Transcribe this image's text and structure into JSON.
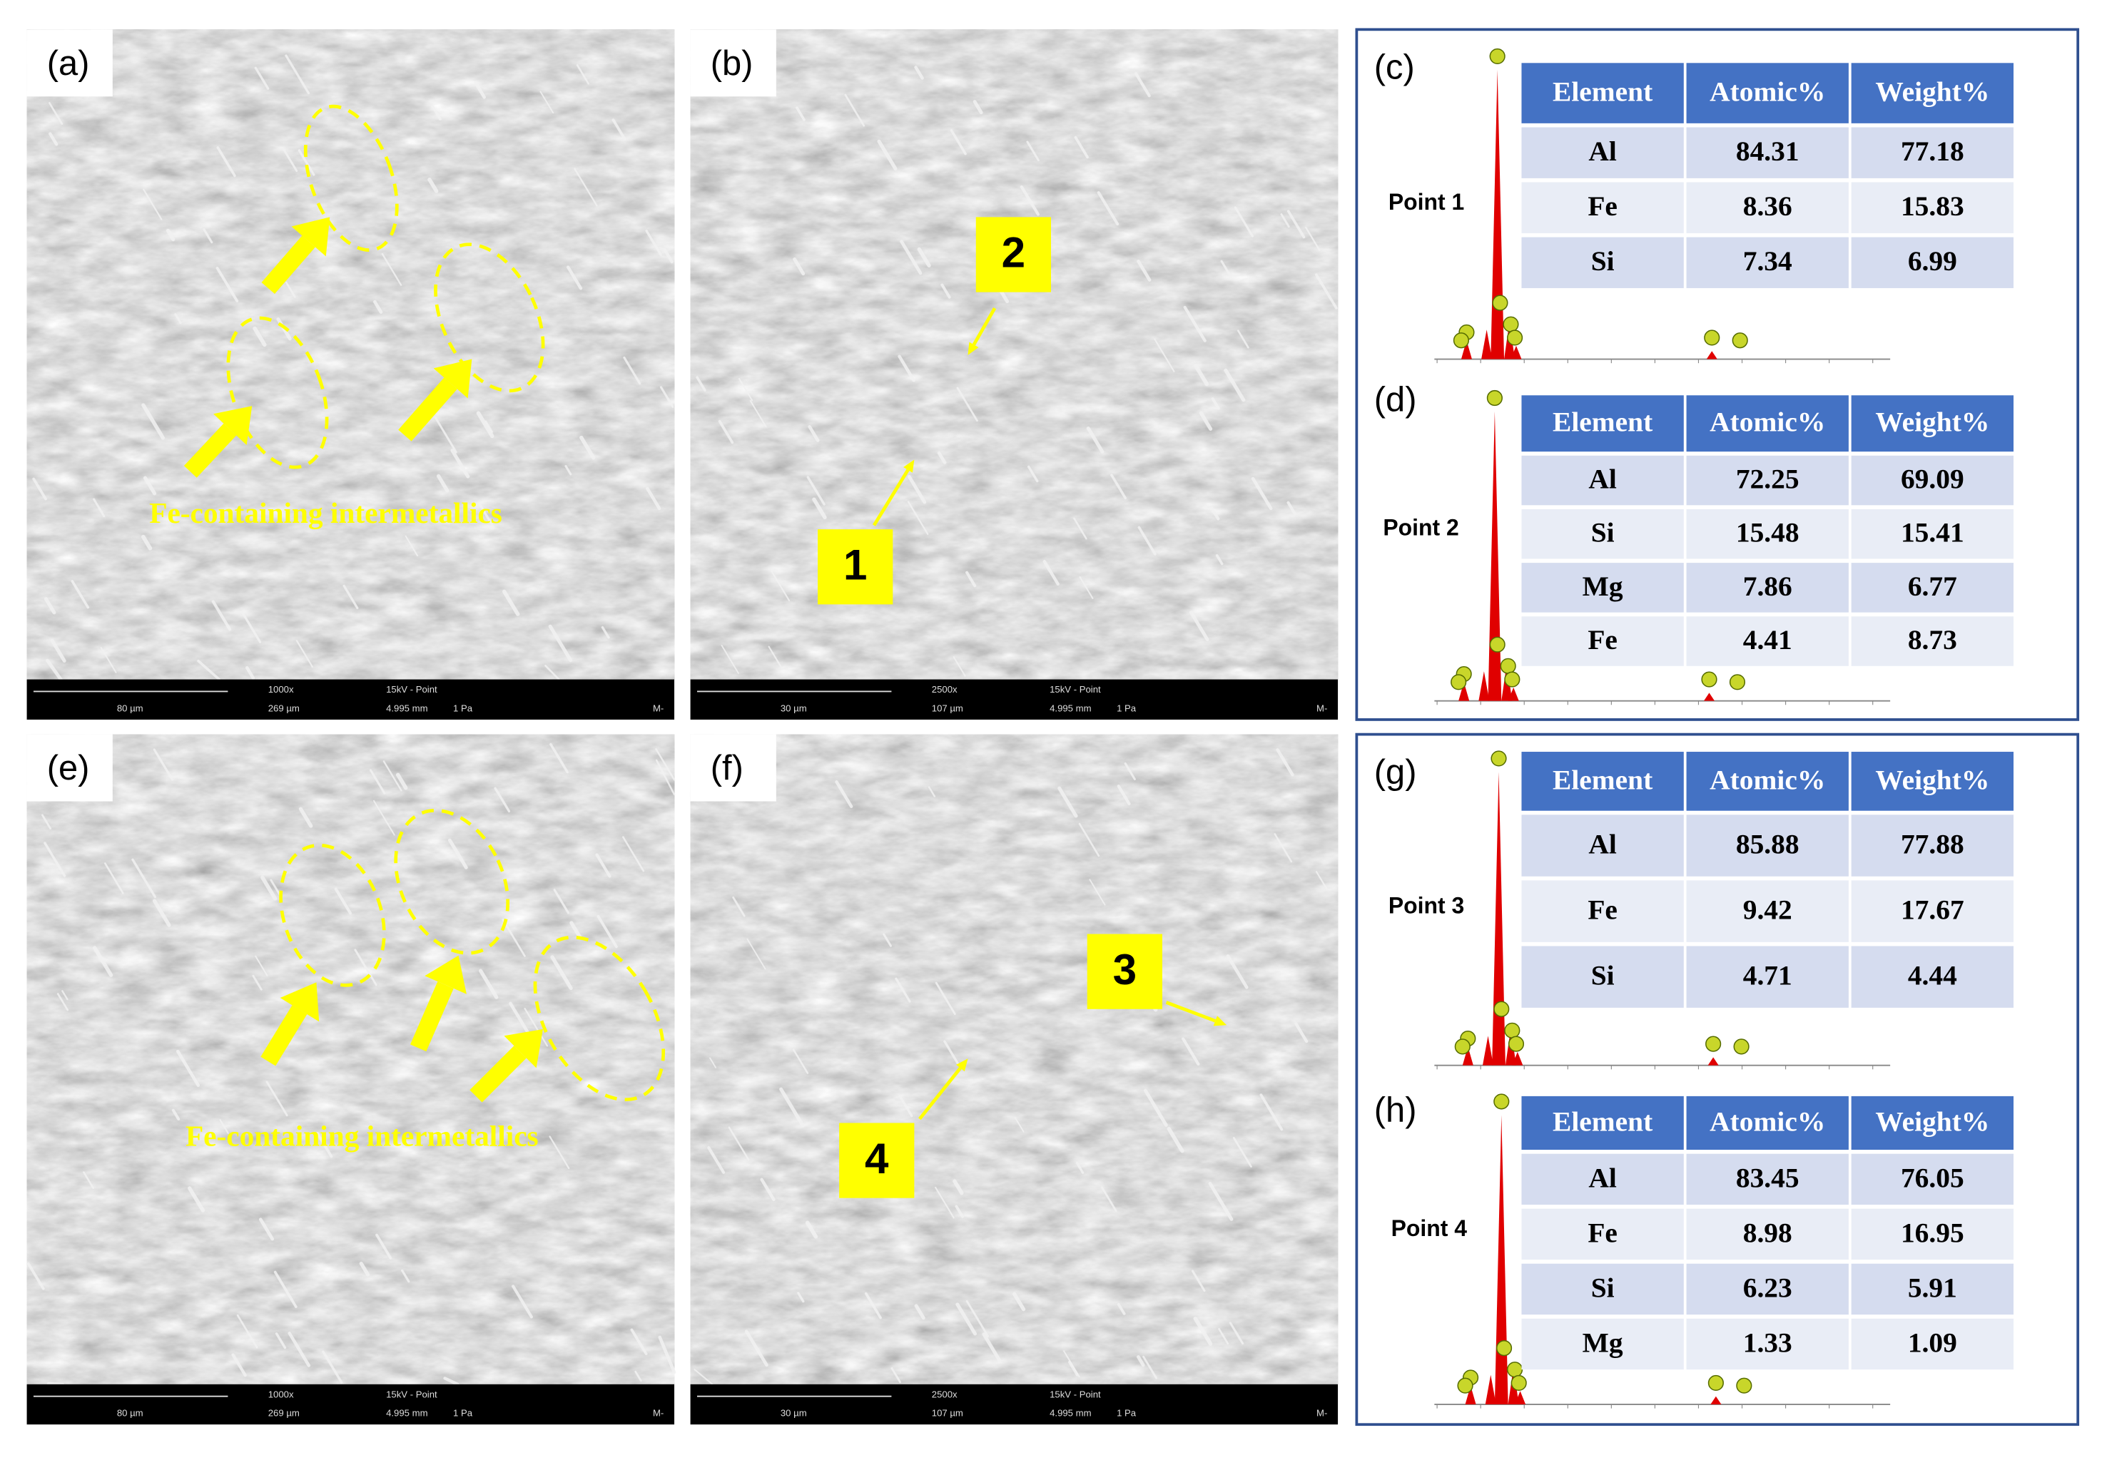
{
  "sem_panels": [
    {
      "label": "(a)",
      "scale": "80 µm",
      "mag": "1000x",
      "hfw": "269 µm",
      "mode": "15kV - Point",
      "wd": "4.995 mm",
      "pressure": "1 Pa",
      "tag": "M-",
      "annotation": "Fe-containing intermetallics"
    },
    {
      "label": "(b)",
      "scale": "30 µm",
      "mag": "2500x",
      "hfw": "107 µm",
      "mode": "15kV - Point",
      "wd": "4.995 mm",
      "pressure": "1 Pa",
      "tag": "M-",
      "points": [
        "2",
        "1"
      ]
    },
    {
      "label": "(e)",
      "scale": "80 µm",
      "mag": "1000x",
      "hfw": "269 µm",
      "mode": "15kV - Point",
      "wd": "4.995 mm",
      "pressure": "1 Pa",
      "tag": "M-",
      "annotation": "Fe-containing intermetallics"
    },
    {
      "label": "(f)",
      "scale": "30 µm",
      "mag": "2500x",
      "hfw": "107 µm",
      "mode": "15kV - Point",
      "wd": "4.995 mm",
      "pressure": "1 Pa",
      "tag": "M-",
      "points": [
        "3",
        "4"
      ]
    }
  ],
  "eds_panels": [
    {
      "label": "(c)",
      "point": "Point 1",
      "header": [
        "Element",
        "Atomic%",
        "Weight%"
      ],
      "rows": [
        [
          "Al",
          84.31,
          77.18
        ],
        [
          "Fe",
          8.36,
          15.83
        ],
        [
          "Si",
          7.34,
          6.99
        ]
      ]
    },
    {
      "label": "(d)",
      "point": "Point 2",
      "header": [
        "Element",
        "Atomic%",
        "Weight%"
      ],
      "rows": [
        [
          "Al",
          72.25,
          69.09
        ],
        [
          "Si",
          15.48,
          15.41
        ],
        [
          "Mg",
          7.86,
          6.77
        ],
        [
          "Fe",
          4.41,
          8.73
        ]
      ]
    },
    {
      "label": "(g)",
      "point": "Point 3",
      "header": [
        "Element",
        "Atomic%",
        "Weight%"
      ],
      "rows": [
        [
          "Al",
          85.88,
          77.88
        ],
        [
          "Fe",
          9.42,
          17.67
        ],
        [
          "Si",
          4.71,
          4.44
        ]
      ]
    },
    {
      "label": "(h)",
      "point": "Point 4",
      "header": [
        "Element",
        "Atomic%",
        "Weight%"
      ],
      "rows": [
        [
          "Al",
          83.45,
          76.05
        ],
        [
          "Fe",
          8.98,
          16.95
        ],
        [
          "Si",
          6.23,
          5.91
        ],
        [
          "Mg",
          1.33,
          1.09
        ]
      ]
    }
  ]
}
